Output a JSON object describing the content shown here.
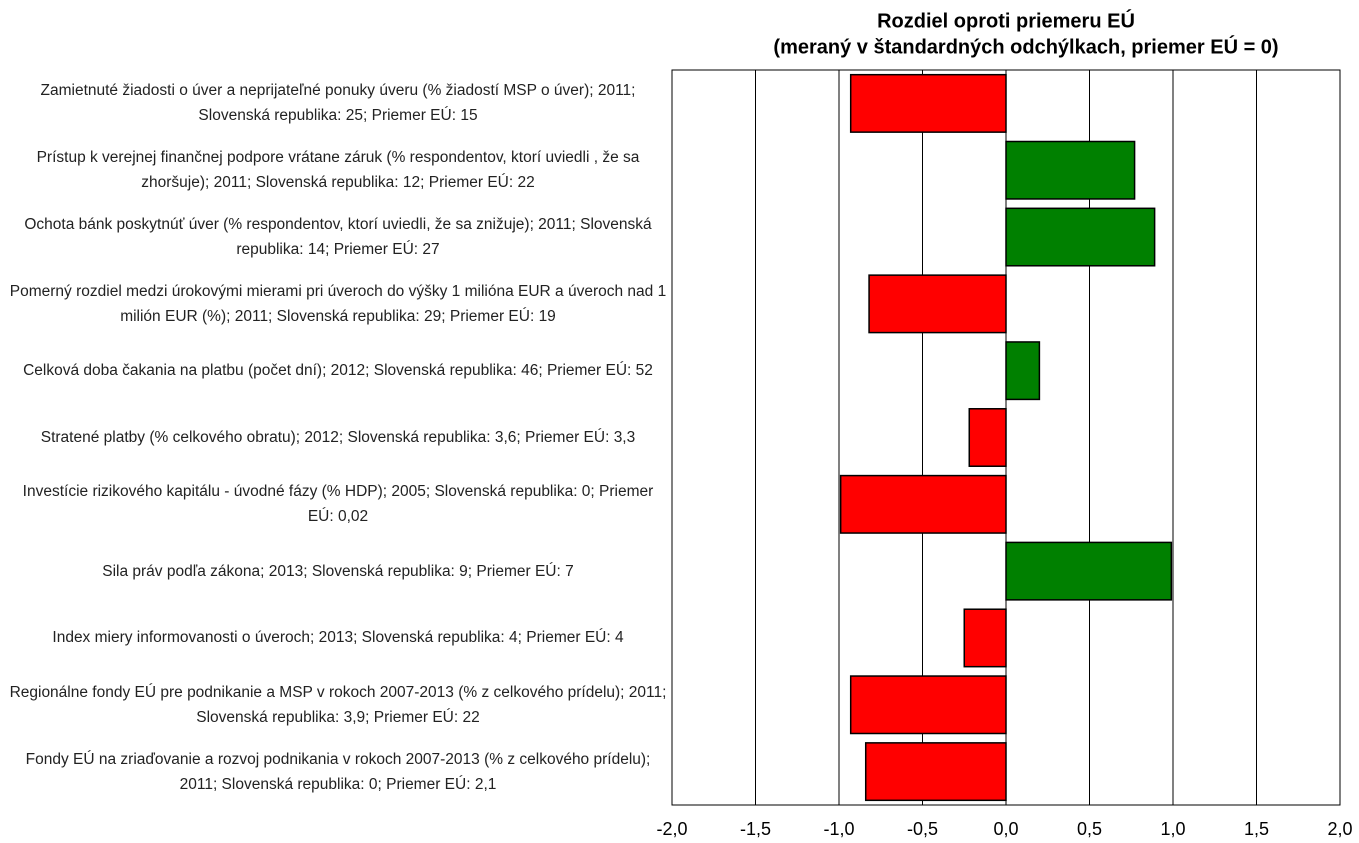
{
  "chart_data": {
    "type": "bar",
    "orientation": "horizontal",
    "title": "Rozdiel oproti priemeru EÚ",
    "subtitle": "(meraný v štandardných odchýlkach, priemer EÚ = 0)",
    "categories": [
      "Zamietnuté žiadosti o úver a neprijateľné ponuky úveru (% žiadostí MSP o úver); 2011; Slovenská republika: 25; Priemer EÚ: 15",
      "Prístup k verejnej finančnej podpore vrátane záruk (% respondentov, ktorí uviedli , že sa zhoršuje); 2011; Slovenská republika: 12; Priemer EÚ: 22",
      "Ochota bánk poskytnúť úver (% respondentov, ktorí uviedli, že sa znižuje); 2011; Slovenská republika: 14; Priemer EÚ: 27",
      "Pomerný rozdiel medzi úrokovými mierami pri úveroch do výšky 1 milióna EUR a úveroch nad 1 milión EUR (%); 2011; Slovenská republika: 29; Priemer EÚ: 19",
      "Celková doba čakania na platbu (počet dní); 2012; Slovenská republika: 46; Priemer EÚ: 52",
      "Stratené platby (% celkového obratu); 2012; Slovenská republika: 3,6; Priemer EÚ: 3,3",
      "Investície rizikového kapitálu - úvodné fázy (% HDP); 2005; Slovenská republika: 0; Priemer EÚ: 0,02",
      "Sila práv podľa zákona; 2013; Slovenská republika: 9; Priemer EÚ: 7",
      "Index miery informovanosti o úveroch; 2013; Slovenská republika: 4; Priemer EÚ: 4",
      "Regionálne fondy EÚ pre podnikanie a MSP v rokoch 2007-2013 (% z celkového prídelu); 2011; Slovenská republika: 3,9; Priemer EÚ: 22",
      "Fondy EÚ na zriaďovanie a rozvoj podnikania v rokoch 2007-2013 (%  z celkového prídelu); 2011; Slovenská republika: 0; Priemer EÚ: 2,1"
    ],
    "values": [
      -0.93,
      0.77,
      0.89,
      -0.82,
      0.2,
      -0.22,
      -0.99,
      0.99,
      -0.25,
      -0.93,
      -0.84
    ],
    "colors": [
      "#ff0000",
      "#008000",
      "#008000",
      "#ff0000",
      "#008000",
      "#ff0000",
      "#ff0000",
      "#008000",
      "#ff0000",
      "#ff0000",
      "#ff0000"
    ],
    "xlim": [
      -2,
      2
    ],
    "xticks": [
      {
        "value": -2,
        "label": "-2,0"
      },
      {
        "value": -1.5,
        "label": "-1,5"
      },
      {
        "value": -1,
        "label": "-1,0"
      },
      {
        "value": -0.5,
        "label": "-0,5"
      },
      {
        "value": 0,
        "label": "0,0"
      },
      {
        "value": 0.5,
        "label": "0,5"
      },
      {
        "value": 1,
        "label": "1,0"
      },
      {
        "value": 1.5,
        "label": "1,5"
      },
      {
        "value": 2,
        "label": "2,0"
      }
    ],
    "grid": true
  }
}
